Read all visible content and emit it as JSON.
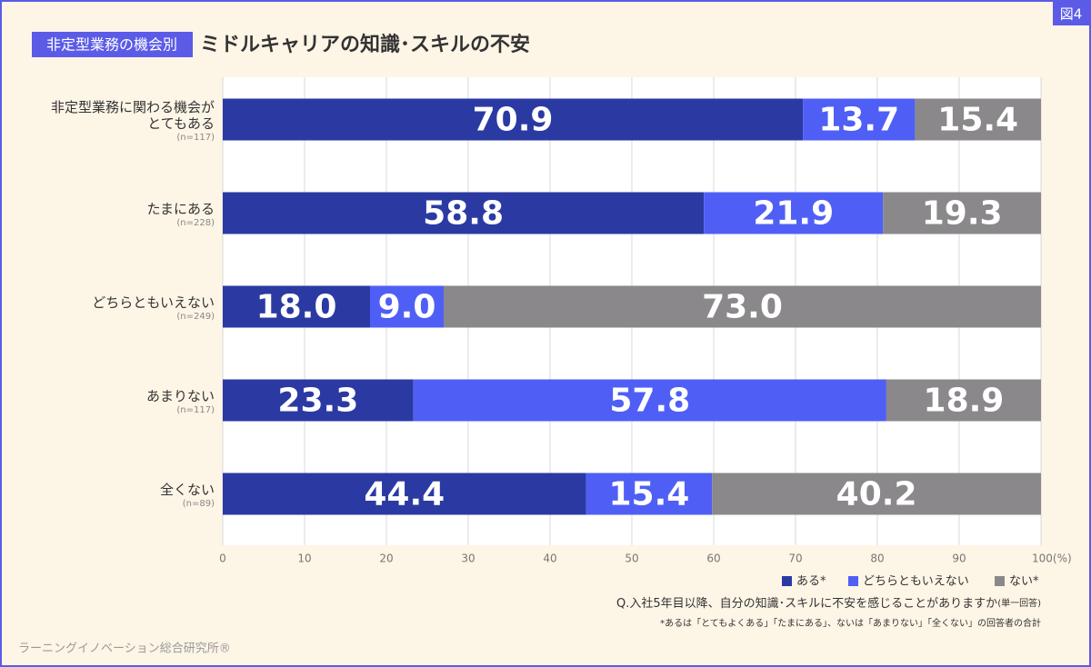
{
  "figure_label": "図4",
  "chart_data": {
    "type": "stacked-barh",
    "tag": "非定型業務の機会別",
    "title": "ミドルキャリアの知識･スキルの不安",
    "categories": [
      "非定型業務に関わる機会が\nとてもある",
      "たまにある",
      "どちらともいえない",
      "あまりない",
      "全くない"
    ],
    "sample_sizes": [
      "(n=117)",
      "(n=228)",
      "(n=249)",
      "(n=117)",
      "(n=89)"
    ],
    "series": [
      {
        "name": "ある*",
        "color": "#2b3aa3",
        "values": [
          70.9,
          58.8,
          18.0,
          23.3,
          44.4
        ],
        "value_labels": [
          "70.9",
          "58.8",
          "18.0",
          "23.3",
          "44.4"
        ]
      },
      {
        "name": "どちらともいえない",
        "color": "#4f5ff5",
        "values": [
          13.7,
          21.9,
          9.0,
          57.8,
          15.4
        ],
        "value_labels": [
          "13.7",
          "21.9",
          "9.0",
          "57.8",
          "15.4"
        ]
      },
      {
        "name": "ない*",
        "color": "#8a888a",
        "values": [
          15.4,
          19.3,
          73.0,
          18.9,
          40.2
        ],
        "value_labels": [
          "15.4",
          "19.3",
          "73.0",
          "18.9",
          "40.2"
        ]
      }
    ],
    "xlim": [
      0,
      100
    ],
    "xticks": [
      0,
      10,
      20,
      30,
      40,
      50,
      60,
      70,
      80,
      90,
      {
        "value": 100,
        "label": "100(%)"
      }
    ],
    "grid": true,
    "legend": "bottom-right",
    "question": "Q.入社5年目以降、自分の知識･スキルに不安を感じることがありますか",
    "question_note": "(単一回答)",
    "footnote": "*あるは「とてもよくある」「たまにある」、ないは「あまりない」「全くない」の回答者の合計"
  },
  "source": "ラーニングイノベーション総合研究所®"
}
